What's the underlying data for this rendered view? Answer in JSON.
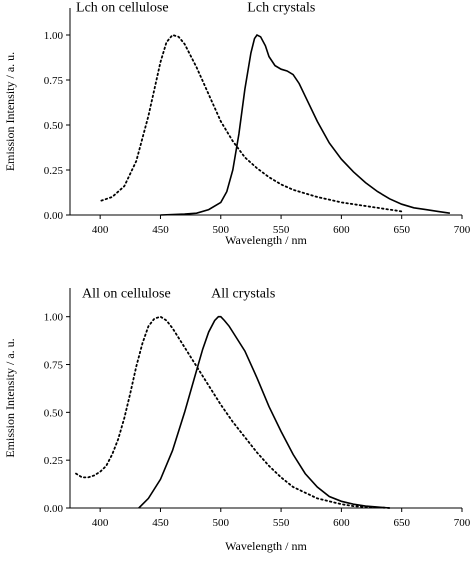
{
  "chart_data": [
    {
      "type": "line",
      "xlabel": "Wavelength / nm",
      "ylabel": "Emission Intensity / a. u.",
      "xlim": [
        375,
        700
      ],
      "ylim": [
        0,
        1.15
      ],
      "xticks": [
        400,
        450,
        500,
        550,
        600,
        650,
        700
      ],
      "xtick_labels": [
        "400",
        "450",
        "500",
        "550",
        "600",
        "650",
        "700"
      ],
      "yticks": [
        0.0,
        0.25,
        0.5,
        0.75,
        1.0
      ],
      "ytick_labels": [
        "0.00",
        "0.25",
        "0.50",
        "0.75",
        "1.00"
      ],
      "annotations": [
        {
          "text": "Lch on cellulose",
          "x": 380,
          "y": 1.13
        },
        {
          "text": "Lch crystals",
          "x": 522,
          "y": 1.13
        }
      ],
      "series": [
        {
          "style": "dotted",
          "x": [
            401,
            410,
            420,
            430,
            440,
            450,
            455,
            460,
            465,
            470,
            480,
            490,
            500,
            510,
            520,
            530,
            540,
            550,
            560,
            570,
            580,
            600,
            620,
            640,
            650
          ],
          "y": [
            0.08,
            0.1,
            0.16,
            0.3,
            0.55,
            0.85,
            0.96,
            1.0,
            0.99,
            0.95,
            0.82,
            0.67,
            0.52,
            0.41,
            0.32,
            0.26,
            0.21,
            0.17,
            0.14,
            0.12,
            0.1,
            0.07,
            0.05,
            0.03,
            0.02
          ]
        },
        {
          "style": "solid",
          "x": [
            450,
            470,
            480,
            490,
            500,
            505,
            510,
            515,
            520,
            525,
            528,
            530,
            533,
            537,
            540,
            545,
            550,
            555,
            560,
            565,
            570,
            580,
            590,
            600,
            610,
            620,
            630,
            640,
            650,
            660,
            670,
            680,
            690
          ],
          "y": [
            0.0,
            0.005,
            0.01,
            0.03,
            0.07,
            0.13,
            0.25,
            0.45,
            0.7,
            0.9,
            0.98,
            1.0,
            0.99,
            0.94,
            0.88,
            0.83,
            0.81,
            0.8,
            0.78,
            0.73,
            0.66,
            0.52,
            0.4,
            0.31,
            0.24,
            0.18,
            0.13,
            0.09,
            0.06,
            0.04,
            0.03,
            0.02,
            0.01
          ]
        }
      ]
    },
    {
      "type": "line",
      "xlabel": "Wavelength / nm",
      "ylabel": "Emission Intensity / a. u.",
      "xlim": [
        375,
        700
      ],
      "ylim": [
        0,
        1.15
      ],
      "xticks": [
        400,
        450,
        500,
        550,
        600,
        650,
        700
      ],
      "xtick_labels": [
        "400",
        "450",
        "500",
        "550",
        "600",
        "650",
        "700"
      ],
      "yticks": [
        0.0,
        0.25,
        0.5,
        0.75,
        1.0
      ],
      "ytick_labels": [
        "0.00",
        "0.25",
        "0.50",
        "0.75",
        "1.00"
      ],
      "annotations": [
        {
          "text": "All on cellulose",
          "x": 385,
          "y": 1.1
        },
        {
          "text": "All crystals",
          "x": 492,
          "y": 1.1
        }
      ],
      "series": [
        {
          "style": "dotted",
          "x": [
            380,
            385,
            390,
            395,
            400,
            405,
            410,
            415,
            420,
            425,
            430,
            435,
            440,
            445,
            450,
            455,
            460,
            470,
            480,
            490,
            500,
            510,
            520,
            530,
            540,
            550,
            560,
            570,
            580,
            590,
            600,
            610,
            620,
            630,
            640
          ],
          "y": [
            0.18,
            0.16,
            0.16,
            0.17,
            0.19,
            0.22,
            0.28,
            0.36,
            0.47,
            0.6,
            0.74,
            0.86,
            0.95,
            0.99,
            1.0,
            0.98,
            0.94,
            0.84,
            0.74,
            0.64,
            0.54,
            0.45,
            0.37,
            0.29,
            0.22,
            0.16,
            0.11,
            0.08,
            0.05,
            0.035,
            0.02,
            0.01,
            0.006,
            0.003,
            0.0
          ]
        },
        {
          "style": "solid",
          "x": [
            432,
            440,
            450,
            460,
            470,
            480,
            485,
            490,
            495,
            498,
            500,
            503,
            507,
            510,
            520,
            530,
            540,
            550,
            560,
            570,
            580,
            590,
            600,
            610,
            620,
            630,
            640
          ],
          "y": [
            0.0,
            0.05,
            0.15,
            0.3,
            0.5,
            0.72,
            0.83,
            0.92,
            0.98,
            1.0,
            1.0,
            0.98,
            0.95,
            0.92,
            0.82,
            0.68,
            0.53,
            0.4,
            0.28,
            0.18,
            0.11,
            0.06,
            0.035,
            0.02,
            0.01,
            0.005,
            0.0
          ]
        }
      ]
    }
  ]
}
